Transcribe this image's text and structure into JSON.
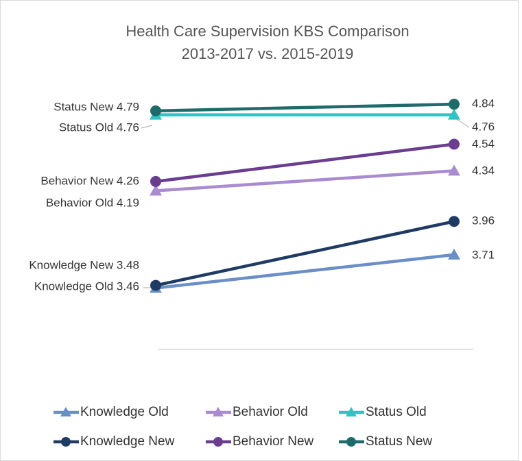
{
  "chart_data": {
    "type": "line",
    "title": "Health Care Supervision KBS Comparison",
    "subtitle": "2013-2017 vs. 2015-2019",
    "categories": [
      null,
      null
    ],
    "ylim": [
      3,
      5
    ],
    "series": [
      {
        "name": "Knowledge Old",
        "color": "#6a8fc7",
        "marker": "triangle",
        "values": [
          3.46,
          3.71
        ],
        "value_labels": [
          "Knowledge Old 3.46",
          "3.71"
        ]
      },
      {
        "name": "Behavior Old",
        "color": "#a98bd0",
        "marker": "triangle",
        "values": [
          4.19,
          4.34
        ],
        "value_labels": [
          "Behavior Old 4.19",
          "4.34"
        ]
      },
      {
        "name": "Status Old",
        "color": "#2ec4c4",
        "marker": "triangle",
        "values": [
          4.76,
          4.76
        ],
        "value_labels": [
          "Status Old 4.76",
          "4.76"
        ]
      },
      {
        "name": "Knowledge New",
        "color": "#1f3b63",
        "marker": "circle",
        "values": [
          3.48,
          3.96
        ],
        "value_labels": [
          "Knowledge New 3.48",
          "3.96"
        ]
      },
      {
        "name": "Behavior New",
        "color": "#6a3d8f",
        "marker": "circle",
        "values": [
          4.26,
          4.54
        ],
        "value_labels": [
          "Behavior New 4.26",
          "4.54"
        ]
      },
      {
        "name": "Status New",
        "color": "#1f6b6b",
        "marker": "circle",
        "values": [
          4.79,
          4.84
        ],
        "value_labels": [
          "Status New 4.79",
          "4.84"
        ]
      }
    ],
    "legend": "bottom"
  }
}
